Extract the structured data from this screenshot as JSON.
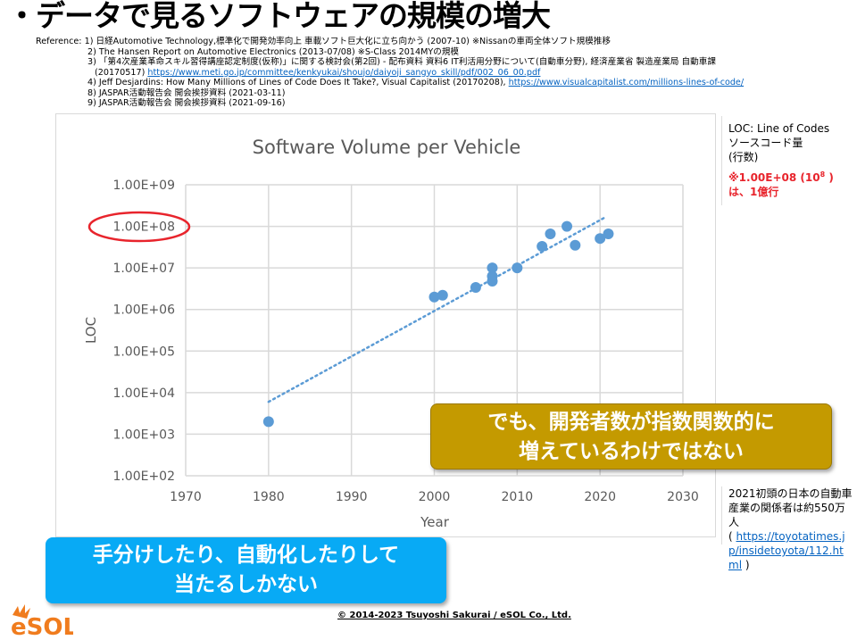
{
  "title": "・データで見るソフトウェアの規模の増大",
  "references": {
    "r1": "Reference: 1) 日経Automotive Technology,標準化で開発効率向上 車載ソフト巨大化に立ち向かう (2007-10) ※Nissanの車両全体ソフト規模推移",
    "r2": "2) The Hansen Report on Automotive Electronics (2013-07/08) ※S-Class 2014MYの規模",
    "r3": "3) 「第4次産業革命スキル習得講座認定制度(仮称)」に関する検討会(第2回) - 配布資料 資料6 IT利活用分野について(自動車分野), 経済産業省 製造産業局 自動車課",
    "r3b": "(20170517) ",
    "r3link": "https://www.meti.go.jp/committee/kenkyukai/shoujo/daiyoji_sangyo_skill/pdf/002_06_00.pdf",
    "r4": "4) Jeff Desjardins: How Many Millions of Lines of Code Does It Take?, Visual Capitalist (20170208), ",
    "r4link": "https://www.visualcapitalist.com/millions-lines-of-code/",
    "r8": "8) JASPAR活動報告会 開会挨拶資料 (2021-03-11)",
    "r9": "9) JASPAR活動報告会 開会挨拶資料 (2021-09-16)"
  },
  "chart_data": {
    "type": "scatter",
    "title": "Software Volume per Vehicle",
    "xlabel": "Year",
    "ylabel": "LOC",
    "xlim": [
      1970,
      2030
    ],
    "ylim": [
      100,
      1000000000
    ],
    "yscale": "log",
    "xticks": [
      "1970",
      "1980",
      "1990",
      "2000",
      "2010",
      "2020",
      "2030"
    ],
    "yticks": [
      "1.00E+02",
      "1.00E+03",
      "1.00E+04",
      "1.00E+05",
      "1.00E+06",
      "1.00E+07",
      "1.00E+08",
      "1.00E+09"
    ],
    "grid": true,
    "color": "#5b9bd5",
    "points": [
      [
        1980,
        2000
      ],
      [
        2000,
        2000000
      ],
      [
        2001,
        2200000
      ],
      [
        2005,
        3400000
      ],
      [
        2007,
        10000000
      ],
      [
        2007,
        6300000
      ],
      [
        2007,
        4800000
      ],
      [
        2010,
        10000000
      ],
      [
        2013,
        33000000
      ],
      [
        2014,
        66000000
      ],
      [
        2016,
        100000000
      ],
      [
        2017,
        35000000
      ],
      [
        2020,
        51000000
      ],
      [
        2021,
        66000000
      ]
    ],
    "trendline": {
      "type": "exponential",
      "style": "dotted",
      "from": [
        1980,
        6000
      ],
      "to": [
        2020.5,
        160000000
      ]
    },
    "highlight": {
      "tick": "1.00E+08",
      "color": "#e8242c"
    }
  },
  "side_note": {
    "line1": "LOC: Line of Codes",
    "line2": "ソースコード量",
    "line3": "(行数)",
    "red1": "※1.00E+08 (10",
    "red_sup": "8",
    "red1_end": " )",
    "red2": "は、1億行"
  },
  "side_note2": {
    "text": "2021初頭の日本の自動車産業の関係者は約550万人",
    "open": "( ",
    "link": "https://toyotatimes.jp/insidetoyota/112.html",
    "close": " )"
  },
  "callout_gold": {
    "line1": "でも、開発者数が指数関数的に",
    "line2": "増えているわけではない",
    "color": "#c49a00"
  },
  "callout_blue": {
    "line1": "手分けしたり、自動化したりして",
    "line2": "当たるしかない",
    "color": "#08aaf5"
  },
  "copyright": "© 2014-2023 Tsuyoshi Sakurai / eSOL Co., Ltd.",
  "logo": "eSOL"
}
